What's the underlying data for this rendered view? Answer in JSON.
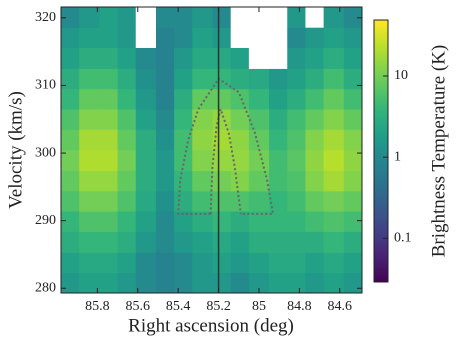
{
  "chart_data": {
    "type": "heatmap",
    "xlabel": "Right ascension (deg)",
    "ylabel": "Velocity (km/s)",
    "colorbar_label": "Brightness Temperature (K)",
    "colormap": "viridis",
    "color_scale": "log",
    "null_color": "#ffffff",
    "xlim": [
      85.98,
      84.49
    ],
    "ylim": [
      279.3,
      321.6
    ],
    "xticks": [
      85.8,
      85.6,
      85.4,
      85.2,
      85,
      84.8,
      84.6
    ],
    "yticks": [
      280,
      290,
      300,
      310,
      320
    ],
    "clim": [
      0.029,
      49
    ],
    "cticks": [
      0.1,
      1,
      10
    ],
    "xbins": [
      85.98,
      85.89,
      85.79,
      85.7,
      85.61,
      85.51,
      85.42,
      85.33,
      85.23,
      85.14,
      85.05,
      84.95,
      84.86,
      84.77,
      84.68,
      84.58,
      84.49
    ],
    "ybins": [
      279.3,
      282.3,
      285.3,
      288.4,
      291.4,
      294.4,
      297.4,
      300.5,
      303.5,
      306.5,
      309.5,
      312.5,
      315.6,
      318.6,
      321.6
    ],
    "z": [
      [
        1.5,
        2,
        2,
        1.5,
        1,
        0.8,
        1,
        1.5,
        1.5,
        1,
        1.5,
        2,
        2,
        1.5,
        2,
        1.5
      ],
      [
        2,
        2.5,
        2.5,
        2,
        1,
        0.8,
        1,
        1.5,
        2,
        1.5,
        2,
        2.5,
        2.5,
        2,
        2.5,
        2
      ],
      [
        3,
        4,
        4,
        3,
        1.5,
        1,
        1.5,
        2,
        2.5,
        2,
        3,
        3,
        3,
        3,
        4,
        3
      ],
      [
        4,
        6,
        6,
        4,
        2,
        1,
        2,
        3,
        4,
        3,
        4,
        4,
        4,
        5,
        6,
        5
      ],
      [
        6,
        10,
        10,
        6,
        2.5,
        1.2,
        3,
        5,
        6,
        6,
        5,
        4,
        5,
        8,
        10,
        8
      ],
      [
        8,
        15,
        15,
        8,
        3,
        1.5,
        4,
        8,
        10,
        12,
        8,
        5,
        6,
        12,
        18,
        12
      ],
      [
        10,
        20,
        20,
        10,
        3,
        1.5,
        5,
        12,
        15,
        15,
        10,
        5,
        7,
        14,
        22,
        14
      ],
      [
        8,
        18,
        18,
        8,
        3,
        1.2,
        5,
        14,
        18,
        14,
        8,
        4,
        6,
        12,
        18,
        12
      ],
      [
        6,
        12,
        12,
        6,
        2,
        1,
        4,
        12,
        15,
        10,
        6,
        3,
        5,
        8,
        12,
        8
      ],
      [
        4,
        8,
        8,
        4,
        1.5,
        0.8,
        3,
        8,
        8,
        6,
        4,
        2,
        3,
        5,
        8,
        5
      ],
      [
        3,
        5,
        5,
        3,
        1.2,
        0.8,
        2,
        4,
        4,
        3,
        2.5,
        1.5,
        2,
        3,
        5,
        3
      ],
      [
        2,
        3,
        3,
        2,
        1,
        0.8,
        1.5,
        2.5,
        2.5,
        2,
        null,
        null,
        1.5,
        2,
        3,
        2
      ],
      [
        1.5,
        2,
        2,
        1.5,
        null,
        0.8,
        1,
        2,
        1.5,
        null,
        null,
        null,
        1,
        1.5,
        2,
        1.5
      ],
      [
        1,
        1.5,
        2,
        1.5,
        null,
        1,
        1,
        1.5,
        1,
        null,
        null,
        null,
        1.5,
        null,
        1.5,
        1
      ]
    ],
    "vline": {
      "x": 85.2,
      "color": "#333333"
    },
    "curves": [
      {
        "color": "#666666",
        "x": [
          85.24,
          85.4,
          85.39,
          85.35,
          85.3,
          85.2,
          85.1,
          85.02,
          84.96,
          84.93,
          85.09
        ],
        "y": [
          291,
          291,
          296,
          302,
          306.5,
          311,
          309,
          303,
          296,
          291,
          291
        ]
      },
      {
        "color": "#666666",
        "x": [
          85.24,
          85.23,
          85.21,
          85.19,
          85.15,
          85.12,
          85.09
        ],
        "y": [
          291,
          298,
          304,
          306.5,
          303,
          298,
          291
        ]
      }
    ]
  }
}
